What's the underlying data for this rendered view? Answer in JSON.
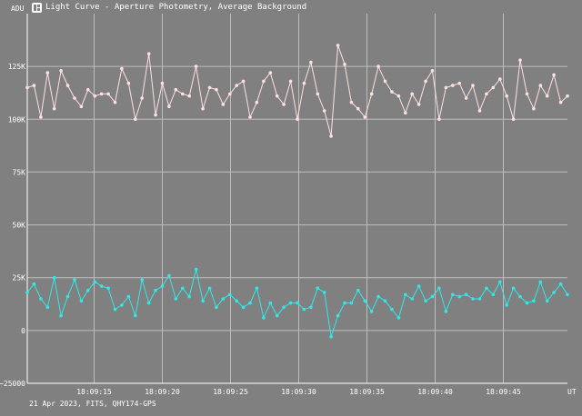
{
  "window": {
    "title": "Light Curve - Aperture Photometry, Average Background",
    "icon": "app-logo-icon"
  },
  "footer": {
    "caption": "21 Apr 2023, FITS, QHY174-GPS"
  },
  "chart_data": {
    "type": "line",
    "ylabel": "ADU",
    "xlabel": "UT",
    "ylim": [
      -25000,
      150000
    ],
    "y_ticks": [
      {
        "value": 125000,
        "label": "125K"
      },
      {
        "value": 100000,
        "label": "100K"
      },
      {
        "value": 75000,
        "label": "75K"
      },
      {
        "value": 50000,
        "label": "50K"
      },
      {
        "value": 25000,
        "label": "25K"
      },
      {
        "value": 0,
        "label": "0"
      },
      {
        "value": -25000,
        "label": "−25000"
      }
    ],
    "xlim": [
      "18:09:10.1",
      "18:09:49.7"
    ],
    "x_ticks": [
      "18:09:15",
      "18:09:20",
      "18:09:25",
      "18:09:30",
      "18:09:35",
      "18:09:40",
      "18:09:45"
    ],
    "grid": true,
    "series": [
      {
        "color": "#ffe0e0",
        "values": [
          115000,
          116000,
          101000,
          122000,
          105000,
          123000,
          116000,
          110000,
          106000,
          114000,
          111000,
          112000,
          112000,
          108000,
          124000,
          117000,
          100000,
          110000,
          131000,
          102000,
          117000,
          106000,
          114000,
          112000,
          111000,
          125000,
          105000,
          115000,
          114000,
          107000,
          112000,
          116000,
          118000,
          101000,
          108000,
          118000,
          122000,
          111000,
          107000,
          118000,
          100000,
          117000,
          127000,
          112000,
          104000,
          92000,
          135000,
          126000,
          108000,
          105000,
          101000,
          112000,
          125000,
          118000,
          113000,
          111000,
          103000,
          112000,
          107000,
          118000,
          123000,
          100000,
          115000,
          116000,
          117000,
          110000,
          116000,
          104000,
          112000,
          115000,
          119000,
          111000,
          100000,
          128000,
          112000,
          105000,
          116000,
          111000,
          121000,
          108000,
          111000
        ]
      },
      {
        "color": "#30e8e8",
        "values": [
          18000,
          22000,
          15000,
          11000,
          25000,
          7000,
          16000,
          24000,
          14000,
          19000,
          23000,
          21000,
          20000,
          10000,
          12000,
          16000,
          7000,
          24000,
          13000,
          19000,
          21000,
          26000,
          15000,
          20000,
          16000,
          29000,
          14000,
          20000,
          11000,
          15000,
          17000,
          14000,
          11000,
          13000,
          20000,
          6000,
          13000,
          7000,
          11000,
          13000,
          13000,
          10000,
          11000,
          20000,
          18000,
          -3000,
          7000,
          13000,
          13000,
          19000,
          14000,
          9000,
          16000,
          14000,
          10000,
          6000,
          17000,
          15000,
          21000,
          14000,
          16000,
          20000,
          9000,
          17000,
          16000,
          17000,
          15000,
          15000,
          20000,
          17000,
          23000,
          12000,
          20000,
          16000,
          13000,
          14000,
          23000,
          14000,
          18000,
          22000,
          17000
        ]
      }
    ]
  }
}
